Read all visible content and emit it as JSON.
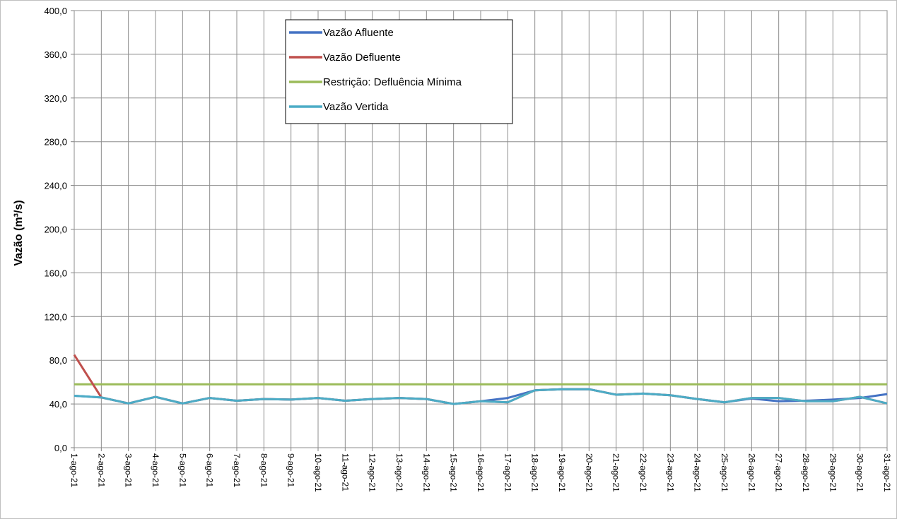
{
  "chart_data": {
    "type": "line",
    "title": "",
    "xlabel": "",
    "ylabel": "Vazão (m³/s)",
    "ylim": [
      0,
      400
    ],
    "y_ticks": [
      "0,0",
      "40,0",
      "80,0",
      "120,0",
      "160,0",
      "200,0",
      "240,0",
      "280,0",
      "320,0",
      "360,0",
      "400,0"
    ],
    "grid": true,
    "legend_position": "top-center",
    "categories": [
      "1-ago-21",
      "2-ago-21",
      "3-ago-21",
      "4-ago-21",
      "5-ago-21",
      "6-ago-21",
      "7-ago-21",
      "8-ago-21",
      "9-ago-21",
      "10-ago-21",
      "11-ago-21",
      "12-ago-21",
      "13-ago-21",
      "14-ago-21",
      "15-ago-21",
      "16-ago-21",
      "17-ago-21",
      "18-ago-21",
      "19-ago-21",
      "20-ago-21",
      "21-ago-21",
      "22-ago-21",
      "23-ago-21",
      "24-ago-21",
      "25-ago-21",
      "26-ago-21",
      "27-ago-21",
      "28-ago-21",
      "29-ago-21",
      "30-ago-21",
      "31-ago-21"
    ],
    "series": [
      {
        "name": "Vazão Afluente",
        "color": "#4472c4",
        "values": [
          47.5,
          46,
          40.5,
          46.5,
          40.5,
          45.5,
          43,
          44.5,
          44,
          45.5,
          43,
          44.5,
          45.5,
          44.5,
          40,
          42.5,
          45.5,
          52.5,
          53.5,
          53.5,
          48.5,
          49.5,
          48,
          44.5,
          41.5,
          45,
          42.5,
          43,
          44,
          45.5,
          49
        ]
      },
      {
        "name": "Vazão Defluente",
        "color": "#c0504d",
        "values": [
          85,
          46,
          40.5,
          46.5,
          40.5,
          45.5,
          43,
          44.5,
          44,
          45.5,
          43,
          44.5,
          45.5,
          44.5,
          40,
          42.5,
          41.5,
          52.5,
          53.5,
          53.5,
          48.5,
          49.5,
          48,
          44.5,
          41.5,
          45.5,
          45.5,
          42.5,
          42.5,
          46.5,
          40.5
        ]
      },
      {
        "name": "Restrição: Defluência Mínima",
        "color": "#9bbb59",
        "values": [
          58,
          58,
          58,
          58,
          58,
          58,
          58,
          58,
          58,
          58,
          58,
          58,
          58,
          58,
          58,
          58,
          58,
          58,
          58,
          58,
          58,
          58,
          58,
          58,
          58,
          58,
          58,
          58,
          58,
          58,
          58
        ]
      },
      {
        "name": "Vazão Vertida",
        "color": "#4bacc6",
        "values": [
          47.5,
          46,
          40.5,
          46.5,
          40.5,
          45.5,
          43,
          44.5,
          44,
          45.5,
          43,
          44.5,
          45.5,
          44.5,
          40,
          42.5,
          41.5,
          52.5,
          53.5,
          53.5,
          48.5,
          49.5,
          48,
          44.5,
          41.5,
          45.5,
          45.5,
          42.5,
          42.5,
          46.5,
          40.5
        ]
      }
    ]
  }
}
